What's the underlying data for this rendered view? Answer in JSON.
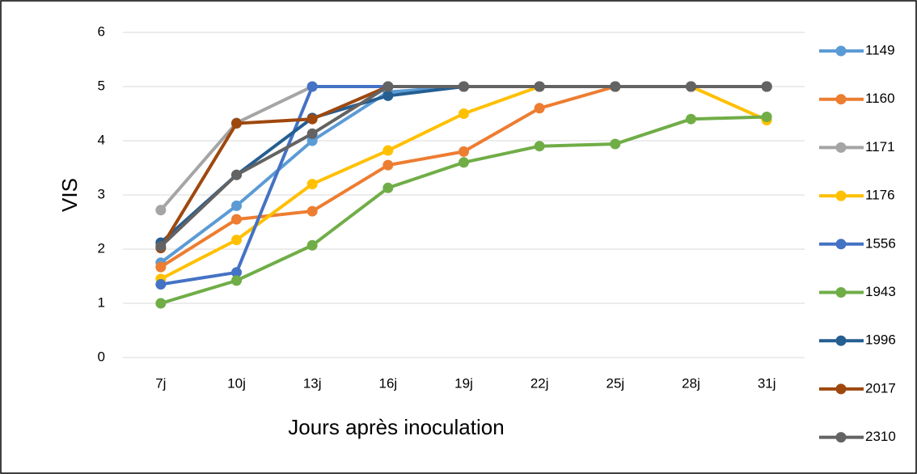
{
  "chart_data": {
    "type": "line",
    "x_label": "Jours après inoculation",
    "y_label": "VIS",
    "categories": [
      "7j",
      "10j",
      "13j",
      "16j",
      "19j",
      "22j",
      "25j",
      "28j",
      "31j"
    ],
    "ylim": [
      0,
      6
    ],
    "yticks": [
      0,
      1,
      2,
      3,
      4,
      5,
      6
    ],
    "grid": true,
    "legend": "right",
    "series": [
      {
        "name": "1149",
        "color": "#5B9BD5",
        "values": [
          1.75,
          2.8,
          4.0,
          4.9,
          5,
          5,
          5,
          5,
          5
        ]
      },
      {
        "name": "1160",
        "color": "#ED7D31",
        "values": [
          1.67,
          2.55,
          2.7,
          3.55,
          3.8,
          4.6,
          5,
          5,
          5
        ]
      },
      {
        "name": "1171",
        "color": "#A5A5A5",
        "values": [
          2.72,
          4.33,
          5,
          5,
          5,
          5,
          5,
          5,
          5
        ]
      },
      {
        "name": "1176",
        "color": "#FFC000",
        "values": [
          1.45,
          2.17,
          3.2,
          3.82,
          4.5,
          5,
          5,
          5,
          4.38
        ]
      },
      {
        "name": "1556",
        "color": "#4472C4",
        "values": [
          1.35,
          1.57,
          5,
          5,
          5,
          5,
          5,
          5,
          5
        ]
      },
      {
        "name": "1943",
        "color": "#70AD47",
        "values": [
          1.0,
          1.42,
          2.07,
          3.13,
          3.6,
          3.9,
          3.94,
          4.4,
          4.44
        ]
      },
      {
        "name": "1996",
        "color": "#255E91",
        "values": [
          2.12,
          3.37,
          4.42,
          4.83,
          5,
          5,
          5,
          5,
          5
        ]
      },
      {
        "name": "2017",
        "color": "#9E480E",
        "values": [
          2.02,
          4.32,
          4.4,
          5,
          5,
          5,
          5,
          5,
          5
        ]
      },
      {
        "name": "2310",
        "color": "#636363",
        "values": [
          2.05,
          3.37,
          4.13,
          5,
          5,
          5,
          5,
          5,
          5
        ]
      }
    ]
  }
}
